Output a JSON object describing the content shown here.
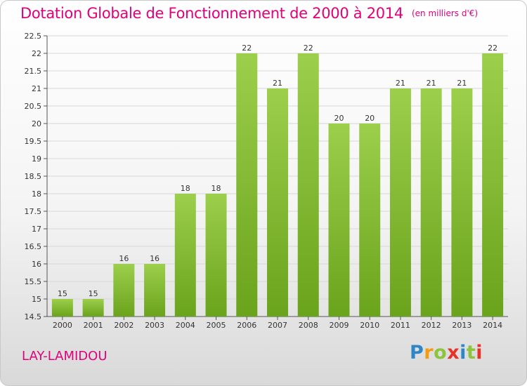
{
  "page": {
    "title": "Dotation Globale de Fonctionnement de 2000 à 2014",
    "unit": "(en milliers d'€)",
    "commune": "LAY-LAMIDOU",
    "logo": {
      "text": "Proxiti"
    }
  },
  "chart_data": {
    "type": "bar",
    "title": "Dotation Globale de Fonctionnement de 2000 à 2014",
    "subtitle": "(en milliers d'€)",
    "xlabel": "",
    "ylabel": "",
    "categories": [
      "2000",
      "2001",
      "2002",
      "2003",
      "2004",
      "2005",
      "2006",
      "2007",
      "2008",
      "2009",
      "2010",
      "2011",
      "2012",
      "2013",
      "2014"
    ],
    "values": [
      15,
      15,
      16,
      16,
      18,
      18,
      22,
      21,
      22,
      20,
      20,
      21,
      21,
      21,
      22
    ],
    "ylim": [
      14.5,
      22.5
    ],
    "yticks": [
      14.5,
      15,
      15.5,
      16,
      16.5,
      17,
      17.5,
      18,
      18.5,
      19,
      19.5,
      20,
      20.5,
      21,
      21.5,
      22,
      22.5
    ],
    "grid": true,
    "legend": "none",
    "colors": {
      "bar_light": "#9ccf4c",
      "bar_dark": "#6aa31c",
      "grid": "#d8d8d8",
      "text_accent": "#e0007a"
    }
  }
}
